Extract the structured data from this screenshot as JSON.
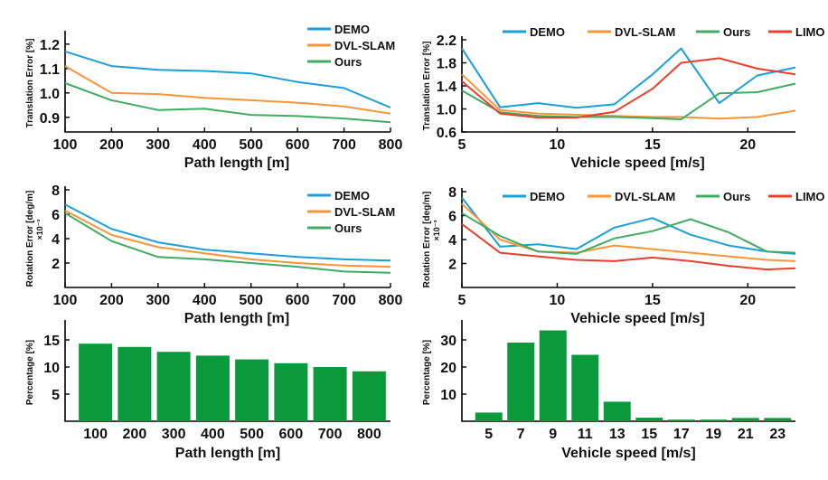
{
  "colors": {
    "DEMO": "#1a9fd8",
    "DVL-SLAM": "#f6953a",
    "Ours": "#3fab63",
    "LIMO": "#e8402b",
    "bar": "#0b9a3b"
  },
  "chart_data": [
    {
      "id": "translation-vs-path",
      "type": "line",
      "xlabel": "Path length [m]",
      "ylabel": "Translation Error [%]",
      "scale_note": "",
      "xlim": [
        100,
        800
      ],
      "ylim": [
        0.84,
        1.24
      ],
      "xticks": [
        100,
        200,
        300,
        400,
        500,
        600,
        700,
        800
      ],
      "yticks": [
        0.9,
        1.0,
        1.1,
        1.2
      ],
      "ytick_labels": [
        "0.9",
        "1.0",
        "1.1",
        "1.2"
      ],
      "legend": "top-right",
      "series": [
        {
          "name": "DEMO",
          "x": [
            100,
            200,
            300,
            400,
            500,
            600,
            700,
            800
          ],
          "y": [
            1.17,
            1.11,
            1.095,
            1.09,
            1.08,
            1.045,
            1.02,
            0.94
          ]
        },
        {
          "name": "DVL-SLAM",
          "x": [
            100,
            200,
            300,
            400,
            500,
            600,
            700,
            800
          ],
          "y": [
            1.11,
            1.0,
            0.995,
            0.98,
            0.97,
            0.96,
            0.945,
            0.915
          ]
        },
        {
          "name": "Ours",
          "x": [
            100,
            200,
            300,
            400,
            500,
            600,
            700,
            800
          ],
          "y": [
            1.04,
            0.97,
            0.93,
            0.935,
            0.91,
            0.905,
            0.895,
            0.88
          ]
        }
      ]
    },
    {
      "id": "translation-vs-speed",
      "type": "line",
      "xlabel": "Vehicle speed [m/s]",
      "ylabel": "Translation Error [%]",
      "scale_note": "",
      "xlim": [
        5,
        22.5
      ],
      "ylim": [
        0.6,
        2.2
      ],
      "xticks": [
        5,
        10,
        15,
        20
      ],
      "yticks": [
        0.6,
        1.0,
        1.4,
        1.8,
        2.2
      ],
      "ytick_labels": [
        "0.6",
        "1.0",
        "1.4",
        "1.8",
        "2.2"
      ],
      "legend": "top",
      "series": [
        {
          "name": "DEMO",
          "x": [
            5,
            7,
            9,
            11,
            13,
            15,
            16.5,
            18.5,
            20.5,
            22.5
          ],
          "y": [
            2.05,
            1.03,
            1.1,
            1.02,
            1.08,
            1.6,
            2.05,
            1.1,
            1.58,
            1.72
          ]
        },
        {
          "name": "DVL-SLAM",
          "x": [
            5,
            7,
            9,
            11,
            13,
            15,
            16.5,
            18.5,
            20.5,
            22.5
          ],
          "y": [
            1.6,
            0.98,
            0.92,
            0.9,
            0.88,
            0.86,
            0.86,
            0.83,
            0.86,
            0.97
          ]
        },
        {
          "name": "Ours",
          "x": [
            5,
            7,
            9,
            11,
            13,
            15,
            16.5,
            18.5,
            20.5,
            22.5
          ],
          "y": [
            1.32,
            0.94,
            0.88,
            0.86,
            0.86,
            0.84,
            0.82,
            1.27,
            1.29,
            1.44
          ]
        },
        {
          "name": "LIMO",
          "x": [
            5,
            7,
            9,
            11,
            13,
            15,
            16.5,
            18.5,
            20.5,
            22.5
          ],
          "y": [
            1.48,
            0.92,
            0.85,
            0.85,
            0.95,
            1.35,
            1.8,
            1.88,
            1.7,
            1.6
          ]
        }
      ]
    },
    {
      "id": "rotation-vs-path",
      "type": "line",
      "xlabel": "Path length [m]",
      "ylabel": "Rotation Error [deg/m]",
      "scale_note": "×10⁻³",
      "xlim": [
        100,
        800
      ],
      "ylim": [
        0,
        8
      ],
      "xticks": [
        100,
        200,
        300,
        400,
        500,
        600,
        700,
        800
      ],
      "yticks": [
        2,
        4,
        6,
        8
      ],
      "ytick_labels": [
        "2",
        "4",
        "6",
        "8"
      ],
      "legend": "top-right",
      "series": [
        {
          "name": "DEMO",
          "x": [
            100,
            200,
            300,
            400,
            500,
            600,
            700,
            800
          ],
          "y": [
            6.8,
            4.8,
            3.7,
            3.1,
            2.8,
            2.5,
            2.3,
            2.2
          ]
        },
        {
          "name": "DVL-SLAM",
          "x": [
            100,
            200,
            300,
            400,
            500,
            600,
            700,
            800
          ],
          "y": [
            6.3,
            4.3,
            3.3,
            2.8,
            2.3,
            2.0,
            1.8,
            1.7
          ]
        },
        {
          "name": "Ours",
          "x": [
            100,
            200,
            300,
            400,
            500,
            600,
            700,
            800
          ],
          "y": [
            6.1,
            3.8,
            2.5,
            2.3,
            2.0,
            1.7,
            1.3,
            1.2
          ]
        }
      ]
    },
    {
      "id": "rotation-vs-speed",
      "type": "line",
      "xlabel": "Vehicle speed [m/s]",
      "ylabel": "Rotation Error [deg/m]",
      "scale_note": "×10⁻³",
      "xlim": [
        5,
        22.5
      ],
      "ylim": [
        0,
        8
      ],
      "xticks": [
        5,
        10,
        15,
        20
      ],
      "yticks": [
        2,
        4,
        6,
        8
      ],
      "ytick_labels": [
        "2",
        "4",
        "6",
        "8"
      ],
      "legend": "top",
      "series": [
        {
          "name": "DEMO",
          "x": [
            5,
            7,
            9,
            11,
            13,
            15,
            17,
            19,
            21,
            22.5
          ],
          "y": [
            7.5,
            3.4,
            3.6,
            3.2,
            5.0,
            5.8,
            4.4,
            3.5,
            3.0,
            2.8
          ]
        },
        {
          "name": "DVL-SLAM",
          "x": [
            5,
            7,
            9,
            11,
            13,
            15,
            17,
            19,
            21,
            22.5
          ],
          "y": [
            7.0,
            4.0,
            3.0,
            2.9,
            3.5,
            3.2,
            2.9,
            2.6,
            2.3,
            2.2
          ]
        },
        {
          "name": "Ours",
          "x": [
            5,
            7,
            9,
            11,
            13,
            15,
            17,
            19,
            21,
            22.5
          ],
          "y": [
            6.2,
            4.3,
            3.0,
            2.8,
            4.1,
            4.7,
            5.7,
            4.6,
            3.0,
            2.9
          ]
        },
        {
          "name": "LIMO",
          "x": [
            5,
            7,
            9,
            11,
            13,
            15,
            17,
            19,
            21,
            22.5
          ],
          "y": [
            5.3,
            2.9,
            2.6,
            2.3,
            2.2,
            2.5,
            2.2,
            1.8,
            1.5,
            1.6
          ]
        }
      ]
    },
    {
      "id": "percentage-vs-path",
      "type": "bar",
      "xlabel": "Path length [m]",
      "ylabel": "Percentage [%]",
      "categories": [
        "100",
        "200",
        "300",
        "400",
        "500",
        "600",
        "700",
        "800"
      ],
      "values": [
        14.3,
        13.7,
        12.8,
        12.1,
        11.4,
        10.7,
        10.0,
        9.2
      ],
      "ylim": [
        0,
        18
      ],
      "yticks": [
        5,
        10,
        15
      ],
      "ytick_labels": [
        "5",
        "10",
        "15"
      ]
    },
    {
      "id": "percentage-vs-speed",
      "type": "bar",
      "xlabel": "Vehicle speed [m/s]",
      "ylabel": "Percentage [%]",
      "categories": [
        "5",
        "7",
        "9",
        "11",
        "13",
        "15",
        "17",
        "19",
        "21",
        "23"
      ],
      "values": [
        3.2,
        29.0,
        33.5,
        24.5,
        7.2,
        1.3,
        0.6,
        0.6,
        1.2,
        1.2
      ],
      "ylim": [
        0,
        36
      ],
      "yticks": [
        10,
        20,
        30
      ],
      "ytick_labels": [
        "10",
        "20",
        "30"
      ]
    }
  ]
}
